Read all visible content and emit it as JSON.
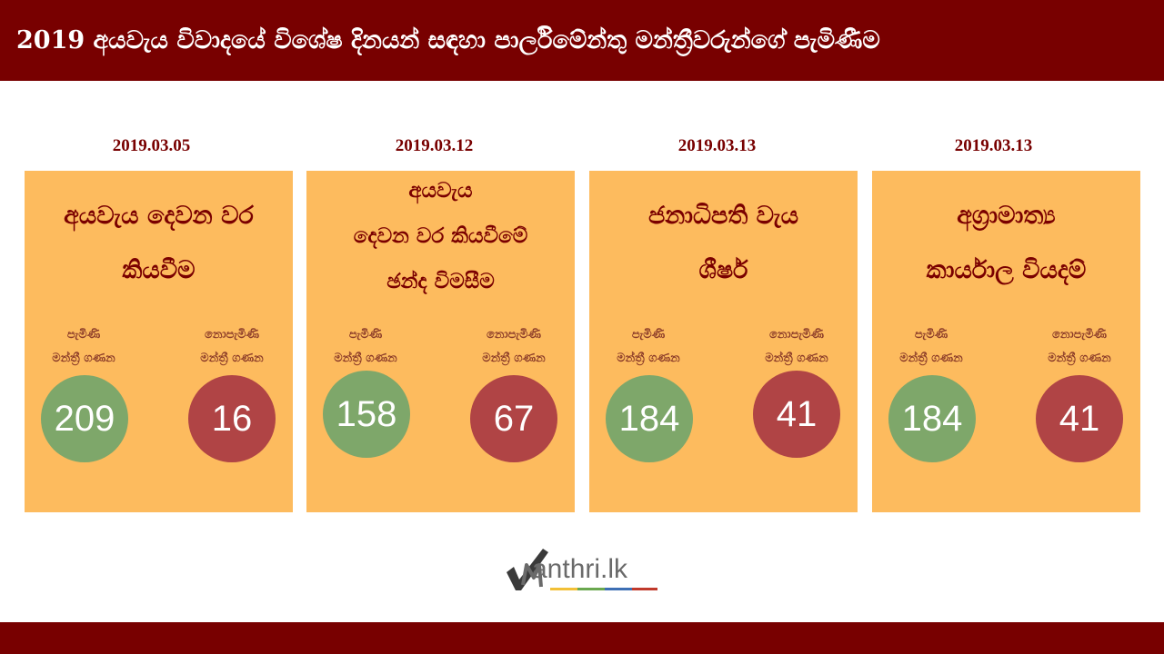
{
  "header": {
    "title": "2019 අයවැය විවාදයේ විශේෂ දිනයන් සඳහා පාර්ලිමේන්තු මන්ත්‍රීවරුන්ගේ පැමිණීම"
  },
  "labels": {
    "present_line1": "පැමිණි",
    "present_line2": "මන්ත්‍රී ගණන",
    "absent_line1": "නොපැමිණි",
    "absent_line2": "මන්ත්‍රී ගණන"
  },
  "cards": [
    {
      "date": "2019.03.05",
      "title_lines": [
        "අයවැය දෙවන වර",
        "කියවීම"
      ],
      "present": "209",
      "absent": "16"
    },
    {
      "date": "2019.03.12",
      "title_lines": [
        "අයවැය",
        "දෙවන වර කියවීමේ",
        "ඡන්ද විමසීම"
      ],
      "present": "158",
      "absent": "67"
    },
    {
      "date": "2019.03.13",
      "title_lines": [
        "ජනාධිපති වැය",
        "ශීර්ෂ"
      ],
      "present": "184",
      "absent": "41"
    },
    {
      "date": "2019.03.13",
      "title_lines": [
        "අග්‍රාමාත්‍ය",
        "කාර්යාල වියදම්"
      ],
      "present": "184",
      "absent": "41"
    }
  ],
  "logo": {
    "text": "anthri.lk",
    "icon": "checkmark-m-icon"
  },
  "colors": {
    "header": "#780000",
    "card": "#fdbb5e",
    "present": "#7ea76a",
    "absent": "#b04445"
  }
}
